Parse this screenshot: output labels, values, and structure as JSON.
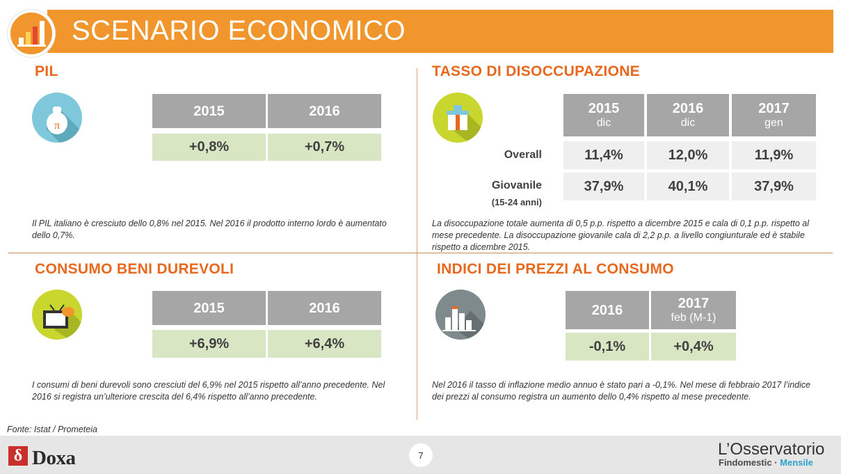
{
  "header": {
    "title": "SCENARIO ECONOMICO"
  },
  "colors": {
    "orange": "#f0962d",
    "title_orange": "#e8681e",
    "header_grey": "#a6a6a6",
    "green_cell": "#d9e6c3",
    "light_cell": "#efefef"
  },
  "pil": {
    "title": "PIL",
    "icon": "money-bag-icon",
    "columns": [
      "2015",
      "2016"
    ],
    "values": [
      "+0,8%",
      "+0,7%"
    ],
    "note": "Il PIL italiano è cresciuto dello 0,8% nel 2015. Nel 2016 il prodotto interno lordo è aumentato dello 0,7%."
  },
  "disoccupazione": {
    "title": "TASSO DI DISOCCUPAZIONE",
    "icon": "gift-box-icon",
    "columns": [
      {
        "year": "2015",
        "sub": "dic"
      },
      {
        "year": "2016",
        "sub": "dic"
      },
      {
        "year": "2017",
        "sub": "gen"
      }
    ],
    "rows": [
      {
        "label": "Overall",
        "sublabel": "",
        "values": [
          "11,4%",
          "12,0%",
          "11,9%"
        ]
      },
      {
        "label": "Giovanile",
        "sublabel": "(15-24 anni)",
        "values": [
          "37,9%",
          "40,1%",
          "37,9%"
        ]
      }
    ],
    "note": "La disoccupazione totale aumenta di 0,5 p.p. rispetto a dicembre 2015 e cala di 0,1 p.p. rispetto al mese precedente. La disoccupazione giovanile cala di 2,2 p.p. a livello congiunturale ed è stabile rispetto a dicembre 2015."
  },
  "consumo": {
    "title": "CONSUMO BENI DUREVOLI",
    "icon": "tv-icon",
    "columns": [
      "2015",
      "2016"
    ],
    "values": [
      "+6,9%",
      "+6,4%"
    ],
    "note": "I consumi di beni durevoli sono cresciuti del 6,9% nel 2015 rispetto all’anno precedente. Nel 2016 si registra un’ulteriore crescita del 6,4% rispetto all’anno precedente."
  },
  "prezzi": {
    "title": "INDICI DEI PREZZI AL CONSUMO",
    "icon": "city-chart-icon",
    "columns": [
      {
        "year": "2016",
        "sub": ""
      },
      {
        "year": "2017",
        "sub": "feb (M-1)"
      }
    ],
    "values": [
      "-0,1%",
      "+0,4%"
    ],
    "note": "Nel 2016 il tasso di inflazione medio annuo è stato pari a -0,1%. Nel mese di febbraio 2017 l’indice dei prezzi al consumo registra un aumento dello 0,4% rispetto al mese precedente."
  },
  "footer": {
    "source": "Fonte: Istat / Prometeia",
    "page": "7",
    "doxa_logo_letter": "δ",
    "doxa": "Doxa",
    "brand_title": "L’Osservatorio",
    "brand_sub_a": "Findomestic",
    "brand_sep": " · ",
    "brand_sub_b": "Mensile"
  }
}
